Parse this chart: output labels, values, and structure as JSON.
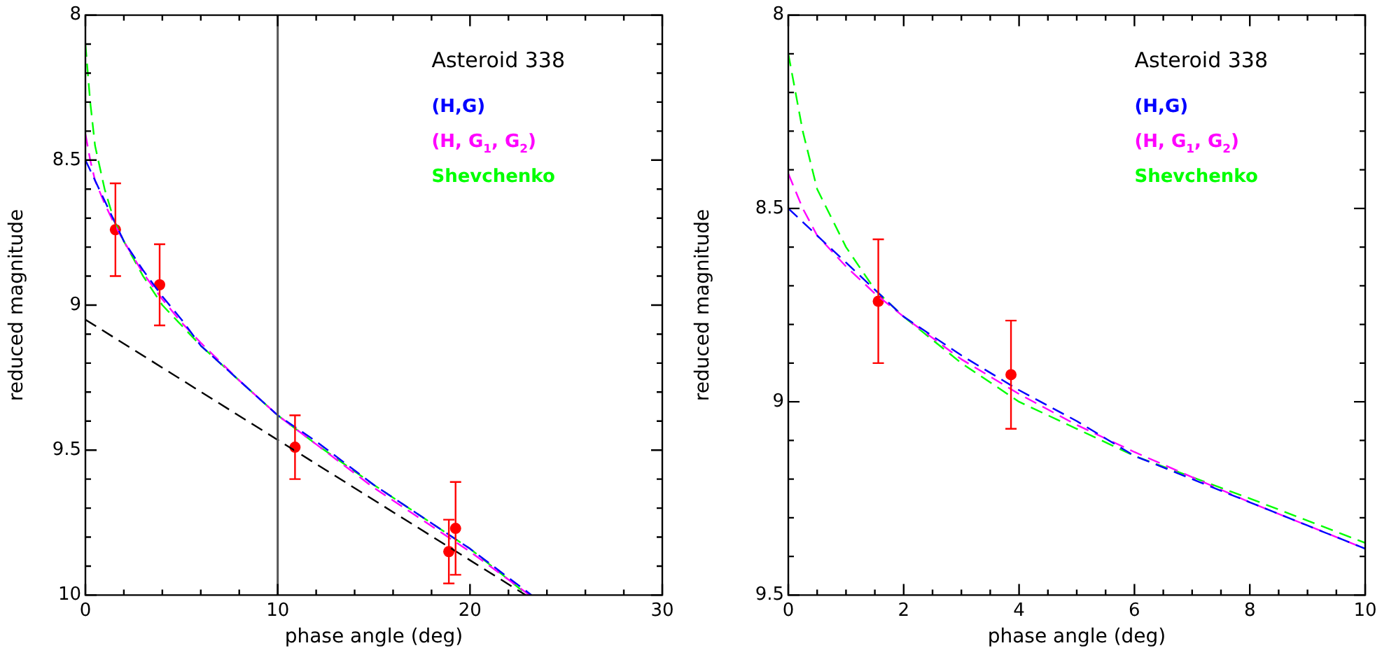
{
  "chart_data": [
    {
      "type": "scatter",
      "annotations": [
        "Asteroid 338"
      ],
      "xlabel": "phase angle (deg)",
      "ylabel": "reduced magnitude",
      "legend": "top right",
      "xlim": [
        0,
        30
      ],
      "ylim": [
        10,
        8
      ],
      "xticks": [
        0,
        {
          "value": 2,
          "label": null
        },
        {
          "value": 4,
          "label": null
        },
        {
          "value": 6,
          "label": null
        },
        {
          "value": 8,
          "label": null
        },
        10,
        {
          "value": 12,
          "label": null
        },
        {
          "value": 14,
          "label": null
        },
        {
          "value": 16,
          "label": null
        },
        {
          "value": 18,
          "label": null
        },
        20,
        {
          "value": 22,
          "label": null
        },
        {
          "value": 24,
          "label": null
        },
        {
          "value": 26,
          "label": null
        },
        {
          "value": 28,
          "label": null
        },
        30
      ],
      "yticks": [
        8,
        {
          "value": 8.1,
          "label": null
        },
        {
          "value": 8.2,
          "label": null
        },
        {
          "value": 8.3,
          "label": null
        },
        {
          "value": 8.4,
          "label": null
        },
        8.5,
        {
          "value": 8.6,
          "label": null
        },
        {
          "value": 8.7,
          "label": null
        },
        {
          "value": 8.8,
          "label": null
        },
        {
          "value": 8.9,
          "label": null
        },
        9,
        {
          "value": 9.1,
          "label": null
        },
        {
          "value": 9.2,
          "label": null
        },
        {
          "value": 9.3,
          "label": null
        },
        {
          "value": 9.4,
          "label": null
        },
        9.5,
        {
          "value": 9.6,
          "label": null
        },
        {
          "value": 9.7,
          "label": null
        },
        {
          "value": 9.8,
          "label": null
        },
        {
          "value": 9.9,
          "label": null
        },
        10
      ],
      "ref_lines": [
        {
          "axis": "x",
          "value": 10,
          "color": "#555555",
          "line_style": "solid"
        }
      ],
      "series": [
        {
          "type": "line",
          "name": "(H,G)",
          "color": "#0000ff",
          "line_style": "dashed",
          "x": [
            0,
            0.5,
            1,
            1.5,
            2,
            3,
            4,
            5,
            6,
            7,
            8,
            9,
            10,
            12,
            15,
            20,
            23.2
          ],
          "values": [
            8.5,
            8.57,
            8.64,
            8.71,
            8.78,
            8.88,
            8.97,
            9.05,
            9.14,
            9.2,
            9.26,
            9.32,
            9.38,
            9.47,
            9.62,
            9.84,
            10
          ]
        },
        {
          "type": "line",
          "name": "(H, G$_{1}$, G$_{2}$)",
          "color": "#ff00ff",
          "line_style": "dashed",
          "x": [
            0,
            0.25,
            0.5,
            1,
            1.5,
            2,
            3,
            4,
            5,
            6,
            8,
            10,
            12,
            15,
            20,
            23.1
          ],
          "values": [
            8.41,
            8.5,
            8.57,
            8.65,
            8.72,
            8.78,
            8.89,
            8.98,
            9.06,
            9.13,
            9.26,
            9.38,
            9.48,
            9.63,
            9.85,
            10
          ]
        },
        {
          "type": "line",
          "name": "Shevchenko",
          "color": "#00ff00",
          "line_style": "dashed",
          "x": [
            0,
            0.25,
            0.5,
            1,
            1.5,
            2,
            3,
            4,
            5,
            6,
            8,
            10,
            12,
            15,
            20,
            23
          ],
          "values": [
            8.1,
            8.3,
            8.45,
            8.6,
            8.71,
            8.78,
            8.9,
            9.0,
            9.07,
            9.14,
            9.26,
            9.38,
            9.48,
            9.62,
            9.84,
            10
          ]
        },
        {
          "type": "line",
          "color": "#000000",
          "line_style": "dashed",
          "x": [
            0,
            22.9
          ],
          "values": [
            9.05,
            10
          ]
        },
        {
          "type": "scatter",
          "color": "#ff0000",
          "marker": "circle",
          "x": [
            1.56,
            3.86,
            10.9,
            18.9,
            19.25
          ],
          "values": [
            8.74,
            8.93,
            9.49,
            9.85,
            9.77
          ],
          "errors": [
            0.16,
            0.14,
            0.11,
            0.11,
            0.16
          ]
        }
      ]
    },
    {
      "type": "scatter",
      "annotations": [
        "Asteroid 338"
      ],
      "xlabel": "phase angle (deg)",
      "ylabel": "reduced magnitude",
      "legend": "top right",
      "xlim": [
        0,
        10
      ],
      "ylim": [
        9.5,
        8
      ],
      "xticks": [
        0,
        {
          "value": 0.5,
          "label": null
        },
        {
          "value": 1,
          "label": null
        },
        {
          "value": 1.5,
          "label": null
        },
        2,
        {
          "value": 2.5,
          "label": null
        },
        {
          "value": 3,
          "label": null
        },
        {
          "value": 3.5,
          "label": null
        },
        4,
        {
          "value": 4.5,
          "label": null
        },
        {
          "value": 5,
          "label": null
        },
        {
          "value": 5.5,
          "label": null
        },
        6,
        {
          "value": 6.5,
          "label": null
        },
        {
          "value": 7,
          "label": null
        },
        {
          "value": 7.5,
          "label": null
        },
        8,
        {
          "value": 8.5,
          "label": null
        },
        {
          "value": 9,
          "label": null
        },
        {
          "value": 9.5,
          "label": null
        },
        10
      ],
      "yticks": [
        8,
        {
          "value": 8.1,
          "label": null
        },
        {
          "value": 8.2,
          "label": null
        },
        {
          "value": 8.3,
          "label": null
        },
        {
          "value": 8.4,
          "label": null
        },
        8.5,
        {
          "value": 8.6,
          "label": null
        },
        {
          "value": 8.7,
          "label": null
        },
        {
          "value": 8.8,
          "label": null
        },
        {
          "value": 8.9,
          "label": null
        },
        9,
        {
          "value": 9.1,
          "label": null
        },
        {
          "value": 9.2,
          "label": null
        },
        {
          "value": 9.3,
          "label": null
        },
        {
          "value": 9.4,
          "label": null
        },
        9.5
      ],
      "series": [
        {
          "type": "line",
          "name": "(H,G)",
          "color": "#0000ff",
          "line_style": "dashed",
          "x": [
            0,
            0.5,
            1,
            1.5,
            2,
            3,
            4,
            5,
            6,
            7,
            8,
            9,
            10
          ],
          "values": [
            8.5,
            8.57,
            8.64,
            8.71,
            8.78,
            8.88,
            8.97,
            9.05,
            9.14,
            9.2,
            9.26,
            9.32,
            9.38
          ]
        },
        {
          "type": "line",
          "name": "(H, G$_{1}$, G$_{2}$)",
          "color": "#ff00ff",
          "line_style": "dashed",
          "x": [
            0,
            0.25,
            0.5,
            1,
            1.5,
            2,
            3,
            4,
            5,
            6,
            8,
            10
          ],
          "values": [
            8.41,
            8.5,
            8.57,
            8.65,
            8.72,
            8.78,
            8.89,
            8.98,
            9.06,
            9.13,
            9.26,
            9.38
          ]
        },
        {
          "type": "line",
          "name": "Shevchenko",
          "color": "#00ff00",
          "line_style": "dashed",
          "x": [
            0,
            0.25,
            0.5,
            1,
            1.5,
            2,
            3,
            4,
            5,
            6,
            8,
            10
          ],
          "values": [
            8.1,
            8.3,
            8.45,
            8.6,
            8.71,
            8.78,
            8.9,
            9.0,
            9.07,
            9.14,
            9.25,
            9.365
          ]
        },
        {
          "type": "scatter",
          "color": "#ff0000",
          "marker": "circle",
          "x": [
            1.56,
            3.86
          ],
          "values": [
            8.74,
            8.93
          ],
          "errors": [
            0.16,
            0.14
          ]
        }
      ]
    }
  ]
}
